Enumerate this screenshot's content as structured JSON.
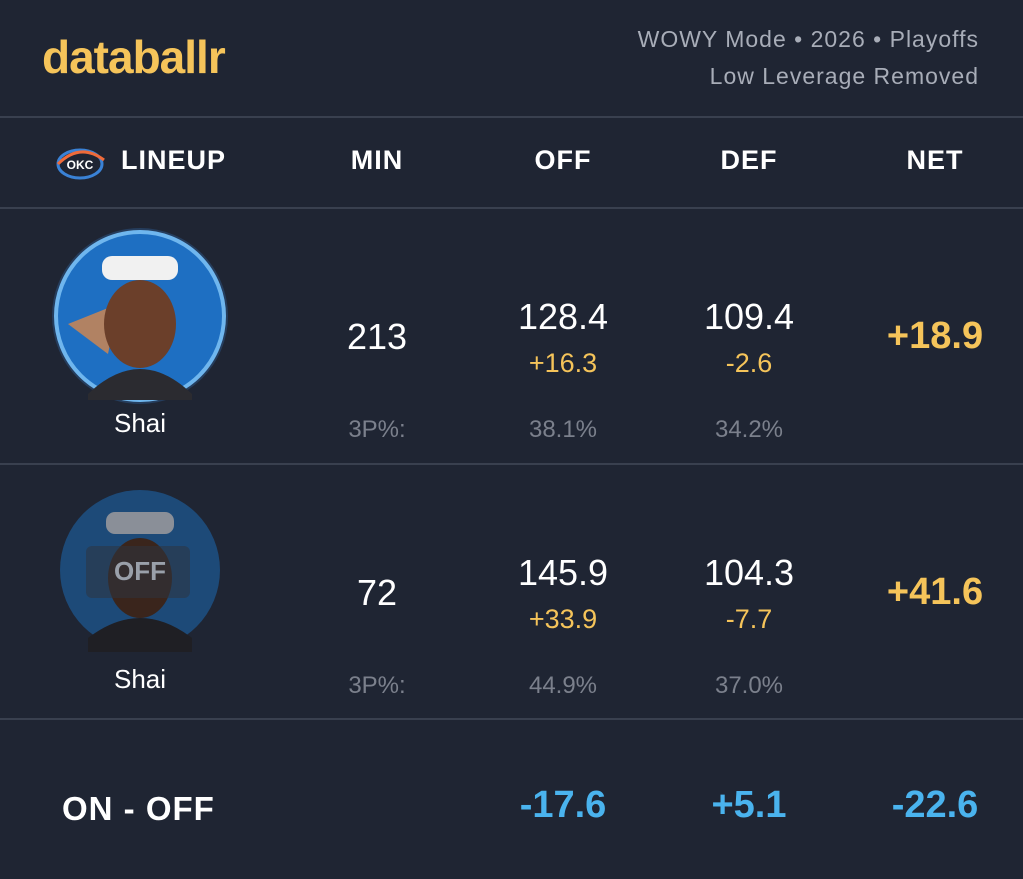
{
  "header": {
    "logo": "databallr",
    "subtitle": [
      "WOWY Mode • 2026 • Playoffs",
      "Low Leverage Removed"
    ]
  },
  "table": {
    "columns": [
      "LINEUP",
      "MIN",
      "OFF",
      "DEF",
      "NET"
    ],
    "team_badge": "OKC",
    "rows": [
      {
        "player": "Shai",
        "min": "213",
        "off": "128.4",
        "off_diff": "+16.3",
        "def": "109.4",
        "def_diff": "-2.6",
        "net": "+18.9",
        "three_label": "3P%:",
        "off_three": "38.1%",
        "def_three": "34.2%"
      },
      {
        "player": "Shai",
        "badge": "OFF",
        "min": "72",
        "off": "145.9",
        "off_diff": "+33.9",
        "def": "104.3",
        "def_diff": "-7.7",
        "net": "+41.6",
        "three_label": "3P%:",
        "off_three": "44.9%",
        "def_three": "37.0%"
      }
    ],
    "footer": {
      "label": "ON - OFF",
      "off": "-17.6",
      "def": "+5.1",
      "net": "-22.6"
    }
  }
}
